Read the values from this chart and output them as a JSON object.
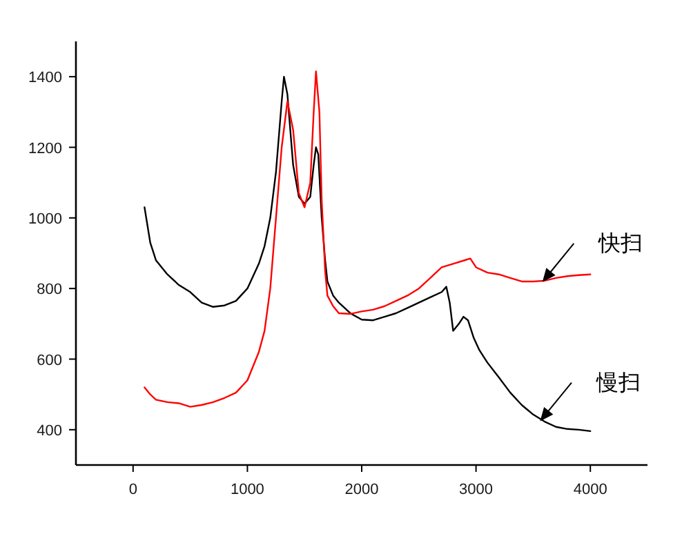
{
  "chart_data": {
    "type": "line",
    "xlim": [
      -500,
      4500
    ],
    "ylim": [
      300,
      1500
    ],
    "xticks": [
      0,
      1000,
      2000,
      3000,
      4000
    ],
    "yticks": [
      400,
      600,
      800,
      1000,
      1200,
      1400
    ],
    "grid": false,
    "line_style": "solid",
    "series": [
      {
        "color": "#000000",
        "x": [
          100,
          150,
          200,
          300,
          400,
          500,
          600,
          700,
          800,
          900,
          1000,
          1100,
          1150,
          1200,
          1250,
          1300,
          1320,
          1350,
          1400,
          1450,
          1500,
          1550,
          1580,
          1600,
          1620,
          1650,
          1680,
          1700,
          1750,
          1800,
          1900,
          2000,
          2100,
          2200,
          2300,
          2400,
          2500,
          2600,
          2700,
          2740,
          2770,
          2800,
          2850,
          2890,
          2930,
          2980,
          3030,
          3100,
          3200,
          3300,
          3400,
          3500,
          3600,
          3700,
          3800,
          3900,
          4000
        ],
        "values": [
          1030,
          930,
          880,
          840,
          810,
          790,
          760,
          748,
          752,
          765,
          800,
          870,
          920,
          1000,
          1130,
          1330,
          1400,
          1350,
          1150,
          1060,
          1040,
          1060,
          1150,
          1200,
          1180,
          1000,
          880,
          820,
          780,
          760,
          730,
          712,
          710,
          720,
          730,
          745,
          760,
          775,
          790,
          805,
          760,
          680,
          700,
          720,
          710,
          660,
          625,
          590,
          548,
          505,
          470,
          443,
          423,
          408,
          402,
          400,
          396
        ]
      },
      {
        "color": "#ff0000",
        "x": [
          100,
          150,
          200,
          300,
          400,
          500,
          600,
          700,
          800,
          900,
          1000,
          1100,
          1150,
          1200,
          1250,
          1300,
          1350,
          1400,
          1450,
          1500,
          1550,
          1580,
          1600,
          1630,
          1650,
          1680,
          1700,
          1750,
          1800,
          1900,
          2000,
          2100,
          2200,
          2300,
          2400,
          2500,
          2600,
          2700,
          2800,
          2900,
          2950,
          3000,
          3100,
          3200,
          3300,
          3400,
          3500,
          3600,
          3700,
          3800,
          3900,
          4000
        ],
        "values": [
          520,
          500,
          485,
          478,
          475,
          465,
          470,
          478,
          490,
          505,
          540,
          620,
          680,
          800,
          1000,
          1200,
          1330,
          1250,
          1070,
          1030,
          1100,
          1300,
          1415,
          1300,
          1050,
          850,
          780,
          750,
          730,
          728,
          735,
          740,
          750,
          765,
          780,
          800,
          830,
          860,
          870,
          880,
          885,
          860,
          845,
          840,
          830,
          820,
          820,
          822,
          830,
          835,
          838,
          840
        ]
      }
    ],
    "annotations": [
      {
        "text": "快扫",
        "x": 3590,
        "y": 822
      },
      {
        "text": "慢扫",
        "x": 3570,
        "y": 428
      }
    ]
  }
}
